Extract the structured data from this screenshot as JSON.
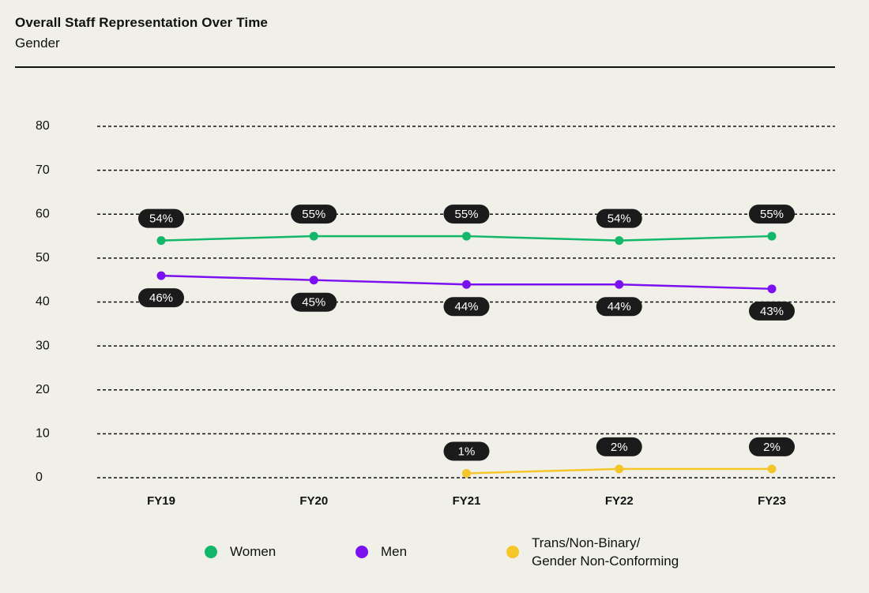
{
  "header": {
    "title": "Overall Staff Representation Over Time",
    "subtitle": "Gender"
  },
  "chart_data": {
    "type": "line",
    "title": "Overall Staff Representation Over Time",
    "subtitle": "Gender",
    "categories": [
      "FY19",
      "FY20",
      "FY21",
      "FY22",
      "FY23"
    ],
    "yticks": [
      "0",
      "10",
      "20",
      "30",
      "40",
      "50",
      "60",
      "70",
      "80"
    ],
    "ylim": [
      0,
      80
    ],
    "grid": true,
    "legend_position": "bottom",
    "series": [
      {
        "name": "Women",
        "color": "#12b76a",
        "values": [
          54,
          55,
          55,
          54,
          55
        ],
        "labels": [
          "54%",
          "55%",
          "55%",
          "54%",
          "55%"
        ],
        "label_position": "above"
      },
      {
        "name": "Men",
        "color": "#7b10f0",
        "values": [
          46,
          45,
          44,
          44,
          43
        ],
        "labels": [
          "46%",
          "45%",
          "44%",
          "44%",
          "43%"
        ],
        "label_position": "below"
      },
      {
        "name": "Trans/Non-Binary/ Gender Non-Conforming",
        "name_lines": [
          "Trans/Non-Binary/",
          "Gender Non-Conforming"
        ],
        "color": "#f5c629",
        "values": [
          null,
          null,
          1,
          2,
          2
        ],
        "labels": [
          null,
          null,
          "1%",
          "2%",
          "2%"
        ],
        "label_position": "above"
      }
    ]
  }
}
